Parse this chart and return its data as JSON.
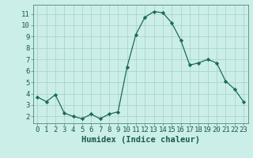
{
  "x": [
    0,
    1,
    2,
    3,
    4,
    5,
    6,
    7,
    8,
    9,
    10,
    11,
    12,
    13,
    14,
    15,
    16,
    17,
    18,
    19,
    20,
    21,
    22,
    23
  ],
  "y": [
    3.7,
    3.3,
    3.9,
    2.3,
    2.0,
    1.8,
    2.2,
    1.8,
    2.2,
    2.4,
    6.3,
    9.2,
    10.7,
    11.2,
    11.1,
    10.2,
    8.7,
    6.5,
    6.7,
    7.0,
    6.7,
    5.1,
    4.4,
    3.3
  ],
  "line_color": "#1a6b5a",
  "marker": "D",
  "marker_size": 2.2,
  "bg_color": "#cceee8",
  "grid_color": "#aad4ce",
  "xlabel": "Humidex (Indice chaleur)",
  "xlim": [
    -0.5,
    23.5
  ],
  "ylim": [
    1.4,
    11.8
  ],
  "yticks": [
    2,
    3,
    4,
    5,
    6,
    7,
    8,
    9,
    10,
    11
  ],
  "xtick_labels": [
    "0",
    "1",
    "2",
    "3",
    "4",
    "5",
    "6",
    "7",
    "8",
    "9",
    "10",
    "11",
    "12",
    "13",
    "14",
    "15",
    "16",
    "17",
    "18",
    "19",
    "20",
    "21",
    "22",
    "23"
  ],
  "tick_fontsize": 6.5,
  "label_fontsize": 7.5,
  "font_color": "#1a5a50"
}
